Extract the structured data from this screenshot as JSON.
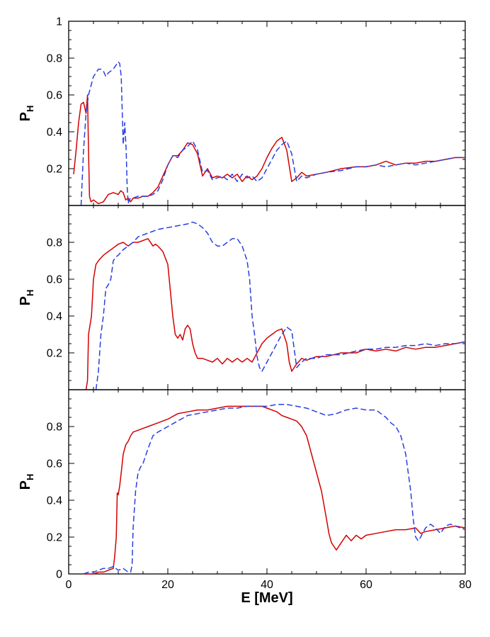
{
  "chart_data": [
    {
      "type": "line",
      "ylabel": "P",
      "ylabel_sub": "H",
      "xlim": [
        0,
        80
      ],
      "ylim": [
        0,
        1
      ],
      "yticks": [
        "0.2",
        "0.4",
        "0.6",
        "0.8",
        "1"
      ],
      "ytick_values": [
        0.2,
        0.4,
        0.6,
        0.8,
        1.0
      ],
      "grid": false,
      "series": [
        {
          "color": "#d40000",
          "style": "solid",
          "x": [
            1,
            1.5,
            2,
            2.5,
            3,
            3.5,
            3.8,
            4,
            4.2,
            4.5,
            5,
            5.5,
            6,
            7,
            8,
            9,
            10,
            10.5,
            11,
            11.5,
            12,
            12.5,
            13,
            14,
            15,
            16,
            17,
            18,
            19,
            20,
            21,
            22,
            23,
            24,
            25,
            26,
            27,
            28,
            29,
            30,
            31,
            32,
            33,
            34,
            35,
            36,
            37,
            38,
            39,
            40,
            41,
            42,
            43,
            44,
            45,
            46,
            47,
            48,
            50,
            52,
            55,
            58,
            60,
            62,
            64,
            66,
            68,
            70,
            72,
            74,
            76,
            78,
            80
          ],
          "y": [
            0.17,
            0.3,
            0.45,
            0.55,
            0.56,
            0.5,
            0.6,
            0.3,
            0.05,
            0.02,
            0.03,
            0.02,
            0.01,
            0.02,
            0.06,
            0.07,
            0.06,
            0.08,
            0.07,
            0.03,
            0.04,
            0.02,
            0.04,
            0.04,
            0.05,
            0.05,
            0.07,
            0.1,
            0.16,
            0.22,
            0.27,
            0.27,
            0.3,
            0.34,
            0.33,
            0.28,
            0.16,
            0.2,
            0.15,
            0.16,
            0.15,
            0.17,
            0.15,
            0.17,
            0.13,
            0.16,
            0.14,
            0.16,
            0.2,
            0.26,
            0.31,
            0.35,
            0.37,
            0.3,
            0.13,
            0.15,
            0.18,
            0.16,
            0.17,
            0.18,
            0.2,
            0.21,
            0.21,
            0.22,
            0.24,
            0.22,
            0.23,
            0.23,
            0.24,
            0.24,
            0.25,
            0.26,
            0.26
          ]
        },
        {
          "color": "#2a3fe0",
          "style": "dashed",
          "x": [
            2.5,
            3,
            3.5,
            4,
            4.5,
            5,
            5.5,
            6,
            6.5,
            7,
            7.5,
            8,
            8.5,
            9,
            9.5,
            10,
            10.3,
            10.6,
            11,
            11.3,
            11.6,
            11.8,
            12,
            12.2,
            12.5,
            13,
            14,
            15,
            16,
            17,
            18,
            19,
            20,
            21,
            22,
            23,
            24,
            25,
            26,
            27,
            28,
            29,
            30,
            31,
            32,
            33,
            34,
            35,
            36,
            37,
            38,
            39,
            40,
            41,
            42,
            43,
            44,
            45,
            46,
            47,
            48,
            50,
            52,
            55,
            58,
            60,
            62,
            64,
            66,
            68,
            70,
            72,
            74,
            76,
            78,
            80
          ],
          "y": [
            0,
            0.3,
            0.5,
            0.6,
            0.65,
            0.7,
            0.72,
            0.74,
            0.74,
            0.73,
            0.7,
            0.72,
            0.73,
            0.74,
            0.76,
            0.78,
            0.77,
            0.7,
            0.33,
            0.45,
            0.3,
            0.1,
            0.01,
            0.03,
            0.04,
            0.04,
            0.05,
            0.05,
            0.05,
            0.06,
            0.08,
            0.14,
            0.22,
            0.27,
            0.26,
            0.3,
            0.32,
            0.35,
            0.3,
            0.18,
            0.19,
            0.14,
            0.15,
            0.16,
            0.14,
            0.17,
            0.13,
            0.17,
            0.15,
            0.16,
            0.13,
            0.15,
            0.2,
            0.25,
            0.3,
            0.33,
            0.35,
            0.28,
            0.13,
            0.16,
            0.15,
            0.17,
            0.18,
            0.19,
            0.21,
            0.21,
            0.22,
            0.21,
            0.22,
            0.23,
            0.22,
            0.23,
            0.24,
            0.25,
            0.26,
            0.26
          ]
        }
      ]
    },
    {
      "type": "line",
      "ylabel": "P",
      "ylabel_sub": "H",
      "xlim": [
        0,
        80
      ],
      "ylim": [
        0,
        1
      ],
      "yticks": [
        "0.2",
        "0.4",
        "0.6",
        "0.8"
      ],
      "ytick_values": [
        0.2,
        0.4,
        0.6,
        0.8
      ],
      "grid": false,
      "series": [
        {
          "color": "#d40000",
          "style": "solid",
          "x": [
            3.5,
            3.8,
            4,
            4.3,
            4.6,
            5,
            5.5,
            6,
            7,
            8,
            9,
            10,
            11,
            12,
            13,
            14,
            15,
            16,
            17,
            17.5,
            18,
            19,
            20,
            21,
            21.5,
            22,
            22.5,
            23,
            23.5,
            24,
            24.5,
            25,
            25.5,
            26,
            27,
            28,
            29,
            30,
            31,
            32,
            33,
            34,
            35,
            36,
            37,
            38,
            39,
            40,
            41,
            42,
            43,
            44,
            44.5,
            45,
            46,
            47,
            48,
            50,
            52,
            55,
            58,
            60,
            62,
            64,
            66,
            68,
            70,
            72,
            74,
            76,
            78,
            80
          ],
          "y": [
            0,
            0.05,
            0.3,
            0.35,
            0.4,
            0.6,
            0.68,
            0.7,
            0.73,
            0.75,
            0.77,
            0.79,
            0.8,
            0.78,
            0.8,
            0.8,
            0.81,
            0.82,
            0.78,
            0.79,
            0.78,
            0.75,
            0.68,
            0.4,
            0.3,
            0.28,
            0.3,
            0.27,
            0.33,
            0.35,
            0.33,
            0.25,
            0.2,
            0.17,
            0.17,
            0.16,
            0.15,
            0.17,
            0.14,
            0.17,
            0.15,
            0.17,
            0.15,
            0.17,
            0.15,
            0.2,
            0.25,
            0.28,
            0.3,
            0.32,
            0.33,
            0.25,
            0.15,
            0.1,
            0.14,
            0.17,
            0.16,
            0.18,
            0.18,
            0.2,
            0.2,
            0.22,
            0.21,
            0.22,
            0.21,
            0.23,
            0.22,
            0.23,
            0.23,
            0.24,
            0.25,
            0.26
          ]
        },
        {
          "color": "#2a3fe0",
          "style": "dashed",
          "x": [
            5.5,
            6,
            6.5,
            7,
            7.5,
            8,
            8.5,
            9,
            9.5,
            10,
            11,
            12,
            13,
            14,
            16,
            18,
            20,
            22,
            24,
            25,
            26,
            27,
            28,
            29,
            30,
            31,
            32,
            33,
            34,
            35,
            36,
            36.5,
            37,
            37.5,
            38,
            38.5,
            39,
            40,
            41,
            42,
            43,
            44,
            45,
            46,
            47,
            48,
            50,
            52,
            55,
            58,
            60,
            62,
            64,
            66,
            68,
            70,
            72,
            74,
            76,
            78,
            80
          ],
          "y": [
            0,
            0.1,
            0.3,
            0.4,
            0.55,
            0.57,
            0.6,
            0.7,
            0.72,
            0.73,
            0.76,
            0.78,
            0.8,
            0.83,
            0.85,
            0.87,
            0.88,
            0.89,
            0.9,
            0.91,
            0.9,
            0.88,
            0.85,
            0.8,
            0.78,
            0.78,
            0.8,
            0.82,
            0.82,
            0.78,
            0.7,
            0.6,
            0.4,
            0.3,
            0.18,
            0.12,
            0.1,
            0.15,
            0.2,
            0.25,
            0.3,
            0.34,
            0.32,
            0.12,
            0.15,
            0.17,
            0.17,
            0.19,
            0.19,
            0.21,
            0.22,
            0.22,
            0.23,
            0.23,
            0.24,
            0.24,
            0.25,
            0.24,
            0.25,
            0.25,
            0.26
          ]
        }
      ]
    },
    {
      "type": "line",
      "xlabel": "E [MeV]",
      "ylabel": "P",
      "ylabel_sub": "H",
      "xlim": [
        0,
        80
      ],
      "ylim": [
        0,
        1
      ],
      "xticks": [
        "0",
        "20",
        "40",
        "60",
        "80"
      ],
      "xtick_values": [
        0,
        20,
        40,
        60,
        80
      ],
      "yticks": [
        "0",
        "0.2",
        "0.4",
        "0.6",
        "0.8"
      ],
      "ytick_values": [
        0,
        0.2,
        0.4,
        0.6,
        0.8
      ],
      "grid": false,
      "series": [
        {
          "color": "#d40000",
          "style": "solid",
          "x": [
            3,
            4,
            5,
            6,
            7,
            8,
            9,
            9.3,
            9.6,
            9.8,
            10,
            10.3,
            10.6,
            11,
            11.5,
            12,
            12.5,
            13,
            14,
            15,
            16,
            18,
            20,
            22,
            24,
            26,
            28,
            30,
            32,
            34,
            36,
            38,
            39,
            40,
            41,
            42,
            43,
            44,
            45,
            46,
            47,
            48,
            49,
            50,
            51,
            52,
            52.5,
            53,
            53.5,
            54,
            55,
            56,
            57,
            58,
            59,
            60,
            62,
            64,
            66,
            68,
            70,
            71,
            72,
            74,
            76,
            78,
            80
          ],
          "y": [
            0,
            0,
            0,
            0.01,
            0.01,
            0.02,
            0.03,
            0.1,
            0.2,
            0.44,
            0.43,
            0.48,
            0.55,
            0.65,
            0.7,
            0.72,
            0.75,
            0.77,
            0.78,
            0.79,
            0.8,
            0.82,
            0.84,
            0.87,
            0.88,
            0.89,
            0.89,
            0.9,
            0.91,
            0.91,
            0.91,
            0.91,
            0.91,
            0.9,
            0.89,
            0.88,
            0.86,
            0.85,
            0.84,
            0.83,
            0.8,
            0.75,
            0.65,
            0.55,
            0.45,
            0.3,
            0.22,
            0.17,
            0.15,
            0.13,
            0.17,
            0.21,
            0.18,
            0.21,
            0.19,
            0.21,
            0.22,
            0.23,
            0.24,
            0.24,
            0.25,
            0.22,
            0.23,
            0.24,
            0.25,
            0.26,
            0.25
          ]
        },
        {
          "color": "#2a3fe0",
          "style": "dashed",
          "x": [
            3,
            4,
            5,
            6,
            7,
            8,
            9,
            10,
            11,
            11.5,
            12,
            12.5,
            12.8,
            13,
            13.5,
            14,
            14.5,
            15,
            16,
            17,
            18,
            20,
            22,
            24,
            26,
            28,
            30,
            32,
            34,
            36,
            38,
            40,
            42,
            44,
            46,
            48,
            50,
            52,
            54,
            56,
            58,
            60,
            62,
            64,
            65,
            66,
            67,
            68,
            68.5,
            69,
            69.5,
            70,
            70.5,
            71,
            72,
            73,
            74,
            75,
            76,
            77,
            78,
            79,
            80
          ],
          "y": [
            0,
            0.01,
            0.01,
            0.02,
            0.03,
            0.03,
            0.04,
            0.02,
            0.03,
            0.02,
            0.01,
            0.01,
            0.05,
            0.25,
            0.45,
            0.55,
            0.58,
            0.6,
            0.68,
            0.75,
            0.77,
            0.8,
            0.83,
            0.86,
            0.87,
            0.88,
            0.89,
            0.9,
            0.9,
            0.91,
            0.91,
            0.91,
            0.92,
            0.92,
            0.91,
            0.9,
            0.88,
            0.86,
            0.87,
            0.89,
            0.9,
            0.89,
            0.89,
            0.85,
            0.82,
            0.8,
            0.75,
            0.65,
            0.55,
            0.45,
            0.3,
            0.2,
            0.18,
            0.2,
            0.25,
            0.27,
            0.25,
            0.22,
            0.26,
            0.27,
            0.26,
            0.25,
            0.24
          ]
        }
      ]
    }
  ]
}
